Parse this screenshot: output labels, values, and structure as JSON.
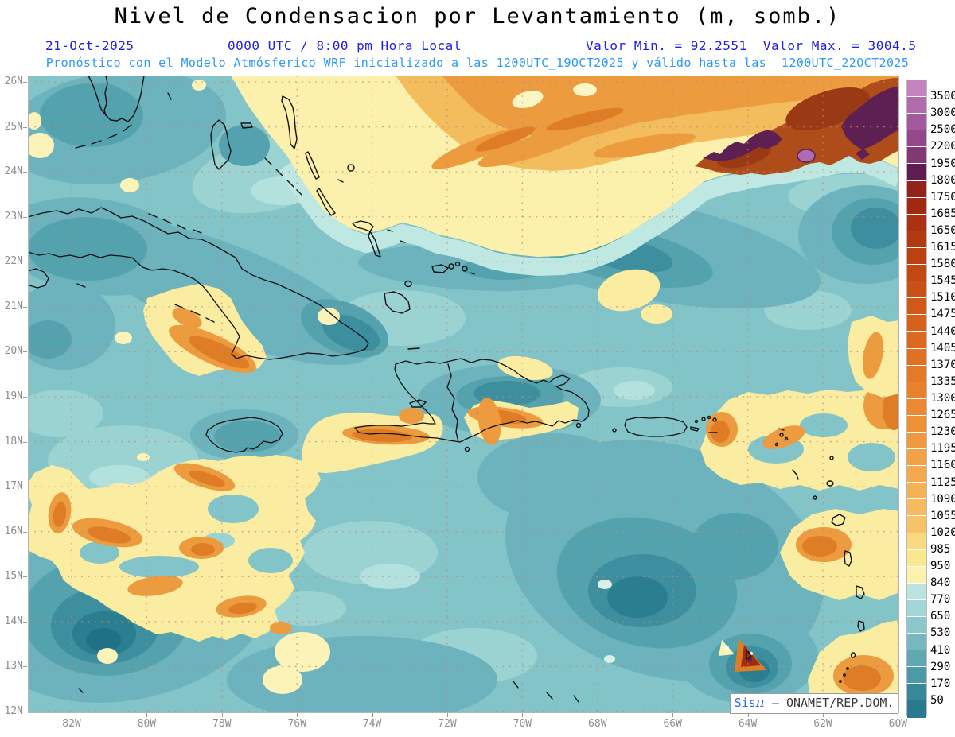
{
  "header": {
    "title": "Nivel de Condensacion por Levantamiento (m, somb.)",
    "date": "21-Oct-2025",
    "time": "0000 UTC / 8:00 pm Hora Local",
    "minmax": "Valor Min. = 92.2551  Valor Max. = 3004.5",
    "forecast_line": "Pronóstico con el Modelo Atmósferico WRF inicializado a las 1200UTC_19OCT2025 y válido hasta las  1200UTC_22OCT2025"
  },
  "colors": {
    "header_blue": "#2020E0",
    "forecast_blue": "#2E9BF0",
    "axis_gray": "#8E8E8E",
    "grid_dot": "#C08878",
    "coastline": "#121212",
    "ocean_base": "#82C4C8"
  },
  "axes": {
    "lat_labels": [
      "26N",
      "25N",
      "24N",
      "23N",
      "22N",
      "21N",
      "20N",
      "19N",
      "18N",
      "17N",
      "16N",
      "15N",
      "14N",
      "13N",
      "12N"
    ],
    "lon_labels": [
      "82W",
      "80W",
      "78W",
      "76W",
      "74W",
      "72W",
      "70W",
      "68W",
      "66W",
      "64W",
      "62W",
      "60W"
    ]
  },
  "colorbar": {
    "labels": [
      "3500",
      "3000",
      "2500",
      "2200",
      "1950",
      "1800",
      "1750",
      "1685",
      "1650",
      "1615",
      "1580",
      "1545",
      "1510",
      "1475",
      "1440",
      "1405",
      "1370",
      "1335",
      "1300",
      "1265",
      "1230",
      "1195",
      "1160",
      "1125",
      "1090",
      "1055",
      "1020",
      "985",
      "950",
      "840",
      "770",
      "650",
      "530",
      "410",
      "290",
      "170",
      "50"
    ],
    "colors": [
      "#C583C0",
      "#B26BAD",
      "#A4589D",
      "#94488B",
      "#823875",
      "#5E1D50",
      "#93221A",
      "#A12912",
      "#AB3110",
      "#B33910",
      "#BB4111",
      "#C34913",
      "#CA5115",
      "#D15918",
      "#D7611B",
      "#DC691E",
      "#E07122",
      "#E47926",
      "#E8812B",
      "#EB8930",
      "#EE9136",
      "#F0993D",
      "#F2A144",
      "#F4A94C",
      "#F5B254",
      "#F7BA5E",
      "#F8C368",
      "#F9DA7E",
      "#FAE88F",
      "#FCF2AE",
      "#BBE4E0",
      "#A2D6D7",
      "#8BC8CC",
      "#75B8BF",
      "#60A9B3",
      "#4C99A7",
      "#37889A",
      "#297A8C"
    ]
  },
  "watermark": {
    "sis": "Sis",
    "pi": "π",
    "sep": " – ",
    "org": "ONAMET/REP.DOM."
  },
  "chart_data": {
    "type": "heatmap",
    "title": "Nivel de Condensacion por Levantamiento (m, somb.)",
    "valid_time": "21-Oct-2025 0000 UTC / 8:00 pm Hora Local",
    "model": "WRF inicializado 1200UTC_19OCT2025, válido hasta 1200UTC_22OCT2025",
    "value_min": 92.2551,
    "value_max": 3004.5,
    "units": "m",
    "lat_range_deg_n": [
      12,
      26
    ],
    "lon_range_deg_w": [
      83.2,
      60
    ],
    "contour_levels": [
      50,
      170,
      290,
      410,
      530,
      650,
      770,
      840,
      950,
      985,
      1020,
      1055,
      1090,
      1125,
      1160,
      1195,
      1230,
      1265,
      1300,
      1335,
      1370,
      1405,
      1440,
      1475,
      1510,
      1545,
      1580,
      1615,
      1650,
      1685,
      1750,
      1800,
      1950,
      2200,
      2500,
      3000,
      3500
    ],
    "legend_position": "right",
    "notes": "Low LCL (teal, ~50-840 m) over Caribbean sea; high LCL (orange-purple, 1300-3500 m) band over Atlantic north of 23N, maxima northeast near 61W/24-25N; yellow patches 840-1300 m scattered southwest of Cuba, south of Haiti and along Lesser Antilles."
  }
}
